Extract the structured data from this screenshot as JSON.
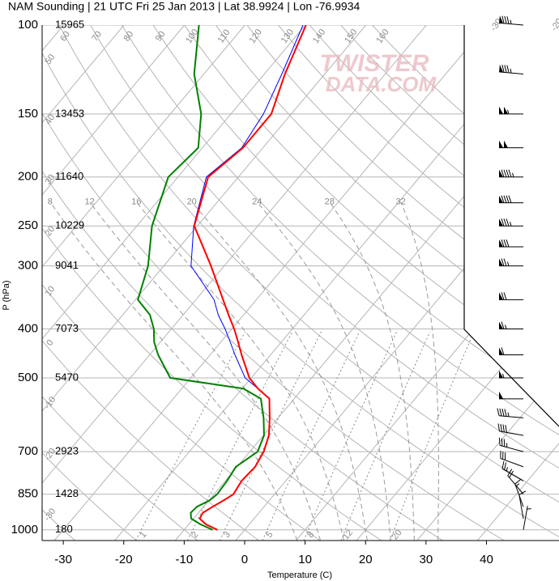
{
  "chart_data": {
    "type": "skewt",
    "title": "NAM Sounding | 21 UTC Fri 25 Jan 2013 | Lat 38.9924 | Lon -76.9934",
    "x_label": "Temperature (C)",
    "y_label": "P (hPa)",
    "xlim": [
      -33.5,
      52
    ],
    "xticks": [
      -30,
      -20,
      -10,
      0,
      10,
      20,
      30,
      40
    ],
    "ylim": [
      1050,
      100
    ],
    "yticks": [
      100,
      150,
      200,
      250,
      300,
      400,
      500,
      700,
      850,
      1000
    ],
    "log_y": true,
    "grid": true,
    "heights": [
      15965,
      13453,
      11640,
      10229,
      9041,
      7073,
      5470,
      2923,
      1428,
      180
    ],
    "pressure": [
      1000,
      975,
      950,
      925,
      900,
      875,
      850,
      800,
      750,
      700,
      650,
      600,
      550,
      525,
      500,
      450,
      425,
      400,
      375,
      350,
      300,
      250,
      200,
      175,
      150,
      125,
      100
    ],
    "series": [
      {
        "color": "#0000ff",
        "values": [
          -4.5,
          -7.2,
          -9.0,
          -9.3,
          -8.5,
          -7.6,
          -6.8,
          -7.3,
          -7.0,
          -7.7,
          -9.1,
          -11.4,
          -14.1,
          -17.4,
          -21.0,
          -25.9,
          -28.4,
          -31.1,
          -34.2,
          -37.0,
          -45.5,
          -50.6,
          -55.3,
          -53.5,
          -54.6,
          -57.1,
          -60.4
        ]
      },
      {
        "color": "#008000",
        "values": [
          -5.3,
          -8.1,
          -10.4,
          -11.3,
          -11.1,
          -9.9,
          -9.5,
          -9.7,
          -10.2,
          -8.7,
          -9.9,
          -12.4,
          -15.5,
          -19.8,
          -33.4,
          -38.6,
          -41.0,
          -42.9,
          -45.5,
          -49.6,
          -52.6,
          -57.5,
          -61.6,
          -60.7,
          -64.9,
          -71.6,
          -77.6
        ]
      },
      {
        "color": "#ff0000",
        "values": [
          -4.5,
          -7.2,
          -9.0,
          -9.3,
          -8.5,
          -7.6,
          -6.8,
          -7.3,
          -7.0,
          -7.7,
          -9.1,
          -11.4,
          -14.1,
          -17.4,
          -20.3,
          -24.8,
          -27.1,
          -29.6,
          -32.5,
          -35.5,
          -42.2,
          -50.5,
          -55.0,
          -53.3,
          -53.3,
          -56.6,
          -59.9
        ]
      }
    ],
    "dry_adiabats": [
      -30,
      -20,
      -10,
      0,
      10,
      20,
      30,
      40,
      50,
      60,
      70,
      80,
      90,
      100,
      110,
      120,
      130,
      140,
      150,
      160
    ],
    "isotherm_labels": [
      -30,
      -20,
      -10,
      0,
      10,
      20,
      30
    ],
    "moist_adiabats": [
      8,
      12,
      16,
      20,
      24,
      28,
      32
    ],
    "mixing_ratios": [
      1,
      2,
      3,
      5,
      8,
      12,
      20
    ],
    "wind": {
      "pressure": [
        100,
        125,
        150,
        175,
        200,
        225,
        250,
        275,
        300,
        350,
        400,
        450,
        500,
        550,
        600,
        650,
        700,
        750,
        800,
        850,
        900,
        950,
        1000
      ],
      "direction": [
        275,
        275,
        270,
        270,
        270,
        270,
        270,
        270,
        270,
        270,
        270,
        270,
        270,
        270,
        275,
        280,
        285,
        290,
        300,
        320,
        340,
        350,
        10
      ],
      "speed": [
        85,
        85,
        105,
        100,
        95,
        90,
        85,
        80,
        75,
        70,
        65,
        60,
        55,
        50,
        45,
        40,
        35,
        30,
        25,
        20,
        15,
        10,
        5
      ]
    },
    "watermark": [
      "TWISTER",
      "DATA.COM"
    ]
  }
}
